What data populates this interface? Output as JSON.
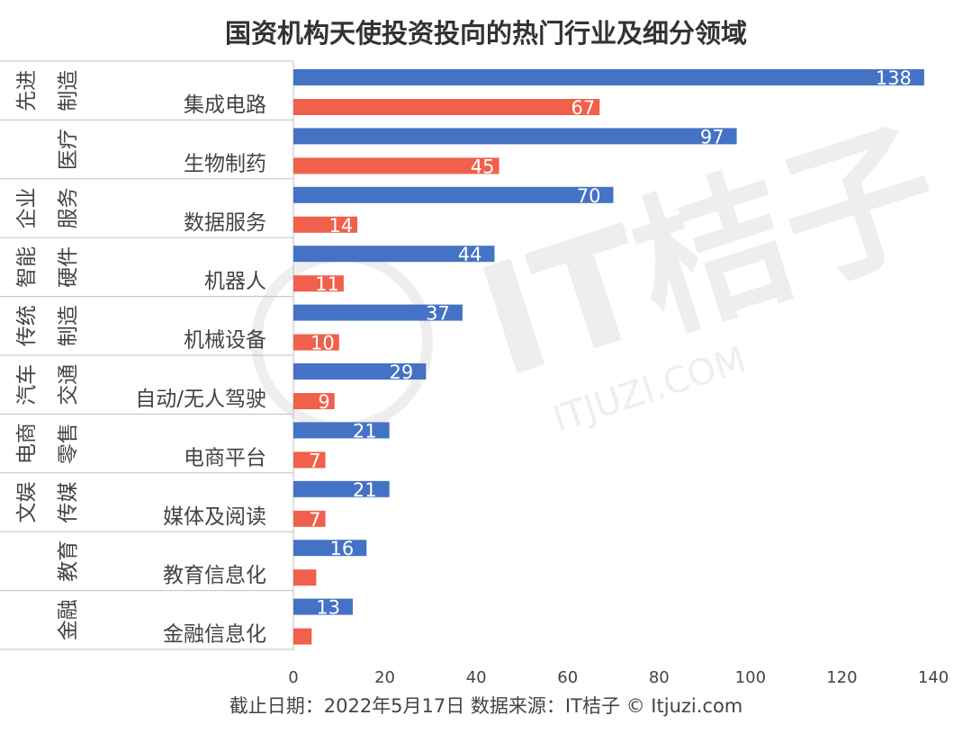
{
  "chart_data": {
    "type": "bar",
    "orientation": "horizontal",
    "title": "国资机构天使投资投向的热门行业及细分领域",
    "footer": "截止日期：2022年5月17日   数据来源：IT桔子 © Itjuzi.com",
    "watermark": "IT桔子",
    "watermark_sub": "ITJUZI.COM",
    "xlim": [
      0,
      140
    ],
    "x_ticks": [
      "0",
      "20",
      "40",
      "60",
      "80",
      "100",
      "120",
      "140"
    ],
    "x_tick_values": [
      0,
      20,
      40,
      60,
      80,
      100,
      120,
      140
    ],
    "grid": false,
    "colors": {
      "industry": "#4472c4",
      "segment": "#f0604a",
      "label_text": "#ffffff",
      "axis_text": "#444444",
      "title_text": "#333333",
      "divider": "#bfbfbf"
    },
    "groups": [
      {
        "group_col1": "先进",
        "group_col2": "制造",
        "industry_value": 138,
        "segment_label": "集成电路",
        "segment_value": 67
      },
      {
        "group_col1": "",
        "group_col2": "医疗",
        "industry_value": 97,
        "segment_label": "生物制药",
        "segment_value": 45
      },
      {
        "group_col1": "企业",
        "group_col2": "服务",
        "industry_value": 70,
        "segment_label": "数据服务",
        "segment_value": 14
      },
      {
        "group_col1": "智能",
        "group_col2": "硬件",
        "industry_value": 44,
        "segment_label": "机器人",
        "segment_value": 11
      },
      {
        "group_col1": "传统",
        "group_col2": "制造",
        "industry_value": 37,
        "segment_label": "机械设备",
        "segment_value": 10
      },
      {
        "group_col1": "汽车",
        "group_col2": "交通",
        "industry_value": 29,
        "segment_label": "自动/无人驾驶",
        "segment_value": 9
      },
      {
        "group_col1": "电商",
        "group_col2": "零售",
        "industry_value": 21,
        "segment_label": "电商平台",
        "segment_value": 7
      },
      {
        "group_col1": "文娱",
        "group_col2": "传媒",
        "industry_value": 21,
        "segment_label": "媒体及阅读",
        "segment_value": 7
      },
      {
        "group_col1": "",
        "group_col2": "教育",
        "industry_value": 16,
        "segment_label": "教育信息化",
        "segment_value": 5,
        "segment_value_shown": false
      },
      {
        "group_col1": "",
        "group_col2": "金融",
        "industry_value": 13,
        "segment_label": "金融信息化",
        "segment_value": 4,
        "segment_value_shown": false
      }
    ]
  }
}
